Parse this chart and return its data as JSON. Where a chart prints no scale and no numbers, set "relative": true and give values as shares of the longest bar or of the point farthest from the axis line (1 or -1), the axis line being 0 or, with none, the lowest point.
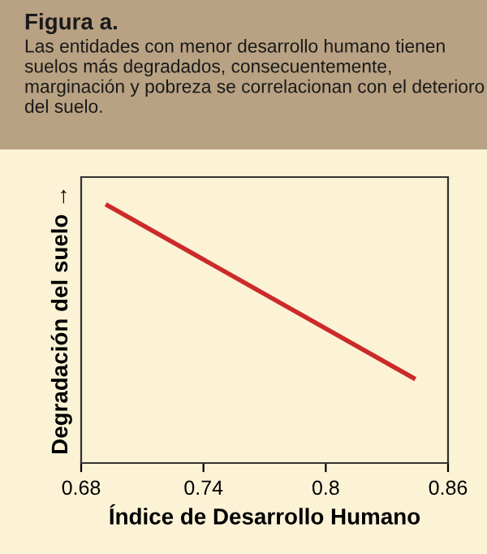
{
  "chart_data": {
    "type": "line",
    "title": "Figura a.",
    "subtitle": "Las entidades con menor desarrollo humano tienen suelos más degradados, consecuentemente, marginación y pobreza se correlacionan con el deterioro del suelo.",
    "xlabel": "Índice de Desarrollo Humano",
    "ylabel": "Degradación del suelo →",
    "x": [
      0.693,
      0.843
    ],
    "relative": true,
    "series": [
      {
        "color": "#cc2a2a",
        "values": [
          1,
          0.33
        ]
      }
    ],
    "xlim": [
      0.68,
      0.86
    ],
    "xticks": [
      0.68,
      0.74,
      {
        "value": 0.8,
        "label": "0.8"
      },
      0.86
    ],
    "grid": false,
    "legend": false,
    "marker": "none",
    "line_style": "solid"
  }
}
